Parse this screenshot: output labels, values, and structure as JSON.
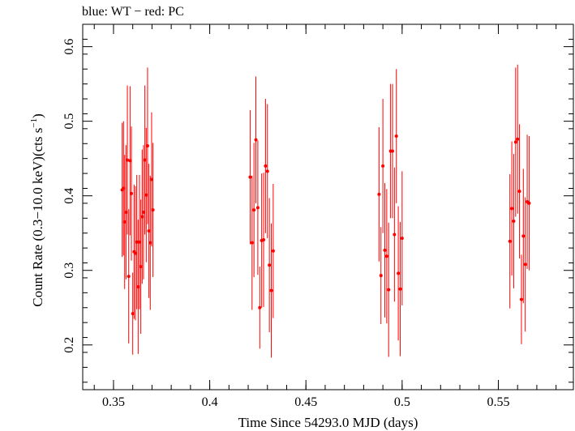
{
  "chart_data": {
    "type": "scatter",
    "title": "blue: WT − red: PC",
    "xlabel": "Time Since 54293.0 MJD (days)",
    "ylabel": "Count Rate (0.3−10.0 keV)(cts s",
    "ylabel_sup": "−1",
    "ylabel_tail": ")",
    "xlim": [
      0.334,
      0.589
    ],
    "ylim": [
      0.14,
      0.63
    ],
    "x_ticks": [
      0.35,
      0.4,
      0.45,
      0.5,
      0.55
    ],
    "x_tick_labels": [
      "0.35",
      "0.4",
      "0.45",
      "0.5",
      "0.55"
    ],
    "y_ticks": [
      0.2,
      0.3,
      0.4,
      0.5,
      0.6
    ],
    "y_tick_labels": [
      "0.2",
      "0.3",
      "0.4",
      "0.5",
      "0.6"
    ],
    "grid": false,
    "series": [
      {
        "color": "#ff0000",
        "x": [
          0.3545,
          0.3552,
          0.3558,
          0.3565,
          0.3572,
          0.3579,
          0.3586,
          0.3593,
          0.36,
          0.3607,
          0.3614,
          0.3621,
          0.3628,
          0.3635,
          0.3642,
          0.3649,
          0.3656,
          0.3663,
          0.367,
          0.3677,
          0.3684,
          0.3691,
          0.3698,
          0.3705,
          0.421,
          0.422,
          0.423,
          0.424,
          0.425,
          0.426,
          0.427,
          0.428,
          0.429,
          0.43,
          0.431,
          0.432,
          0.433,
          0.488,
          0.489,
          0.49,
          0.491,
          0.492,
          0.493,
          0.494,
          0.495,
          0.496,
          0.497,
          0.498,
          0.499,
          0.5,
          0.556,
          0.557,
          0.558,
          0.559,
          0.56,
          0.561,
          0.562,
          0.563,
          0.564,
          0.565,
          0.566
        ],
        "y": [
          0.408,
          0.41,
          0.365,
          0.378,
          0.448,
          0.292,
          0.447,
          0.403,
          0.242,
          0.325,
          0.323,
          0.338,
          0.278,
          0.338,
          0.305,
          0.372,
          0.378,
          0.448,
          0.401,
          0.467,
          0.353,
          0.337,
          0.422,
          0.381,
          0.425,
          0.337,
          0.381,
          0.475,
          0.384,
          0.25,
          0.34,
          0.341,
          0.44,
          0.433,
          0.307,
          0.273,
          0.326,
          0.402,
          0.293,
          0.44,
          0.327,
          0.319,
          0.274,
          0.46,
          0.46,
          0.348,
          0.48,
          0.296,
          0.275,
          0.343,
          0.339,
          0.383,
          0.366,
          0.472,
          0.476,
          0.406,
          0.261,
          0.346,
          0.308,
          0.392,
          0.39
        ],
        "err": [
          0.09,
          0.09,
          0.09,
          0.09,
          0.1,
          0.09,
          0.1,
          0.09,
          0.055,
          0.09,
          0.09,
          0.09,
          0.09,
          0.09,
          0.09,
          0.09,
          0.09,
          0.1,
          0.09,
          0.105,
          0.09,
          0.09,
          0.09,
          0.09,
          0.09,
          0.09,
          0.09,
          0.085,
          0.09,
          0.055,
          0.09,
          0.09,
          0.09,
          0.09,
          0.09,
          0.09,
          0.09,
          0.09,
          0.065,
          0.09,
          0.09,
          0.09,
          0.09,
          0.09,
          0.09,
          0.09,
          0.09,
          0.09,
          0.09,
          0.09,
          0.09,
          0.09,
          0.09,
          0.1,
          0.1,
          0.09,
          0.06,
          0.09,
          0.09,
          0.09,
          0.09
        ]
      }
    ]
  }
}
